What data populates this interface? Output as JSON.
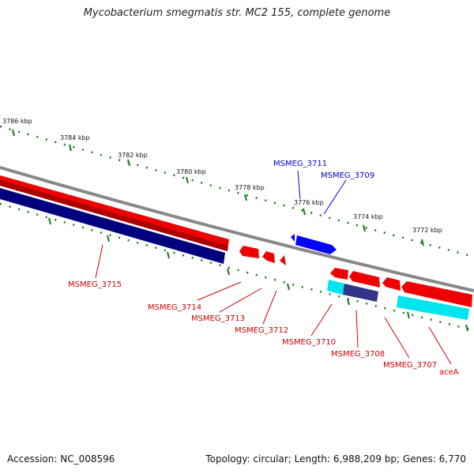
{
  "title": "Mycobacterium smegmatis str. MC2 155, complete genome",
  "footer": {
    "accession": "Accession: NC_008596",
    "summary": "Topology: circular; Length: 6,988,209 bp; Genes: 6,770"
  },
  "colors": {
    "forward_gene": "#ff0000",
    "reverse_gene": "#0000ff",
    "dark_blue": "#00007f",
    "cyan": "#00e5ee",
    "backbone": "#888888",
    "tick": "#1a7a1a",
    "forward_label": "#0000cc",
    "reverse_label": "#cc0000"
  },
  "ticks": [
    {
      "text": "3786 kbp"
    },
    {
      "text": "3784 kbp"
    },
    {
      "text": "3782 kbp"
    },
    {
      "text": "3780 kbp"
    },
    {
      "text": "3778 kbp"
    },
    {
      "text": "3776 kbp"
    },
    {
      "text": "3774 kbp"
    },
    {
      "text": "3772 kbp"
    }
  ],
  "genes": {
    "forward": [
      "MSMEG_3711",
      "MSMEG_3709"
    ],
    "reverse": [
      "MSMEG_3715",
      "MSMEG_3714",
      "MSMEG_3713",
      "MSMEG_3712",
      "MSMEG_3710",
      "MSMEG_3708",
      "MSMEG_3707",
      "aceA"
    ]
  }
}
